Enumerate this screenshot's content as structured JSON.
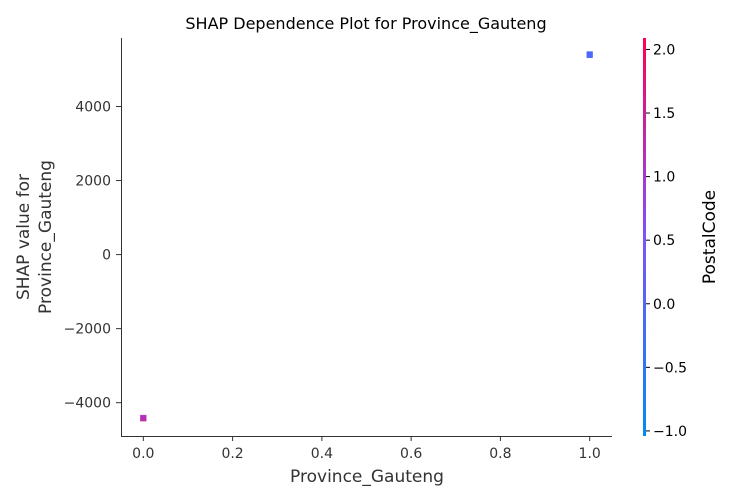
{
  "chart_data": {
    "type": "scatter",
    "title": "SHAP Dependence Plot for Province_Gauteng",
    "xlabel": "Province_Gauteng",
    "ylabel_lines": [
      "SHAP value for",
      "Province_Gauteng"
    ],
    "xlim": [
      -0.05,
      1.05
    ],
    "ylim": [
      -4900,
      5850
    ],
    "x_ticks": [
      0.0,
      0.2,
      0.4,
      0.6,
      0.8,
      1.0
    ],
    "x_tick_labels": [
      "0.0",
      "0.2",
      "0.4",
      "0.6",
      "0.8",
      "1.0"
    ],
    "y_ticks": [
      -4000,
      -2000,
      0,
      2000,
      4000
    ],
    "y_tick_labels": [
      "−4000",
      "−2000",
      "0",
      "2000",
      "4000"
    ],
    "points": [
      {
        "x": 0.0,
        "y": -4420,
        "color_value": 1.5
      },
      {
        "x": 0.0,
        "y": -4420,
        "color_value": 2.0
      },
      {
        "x": 0.0,
        "y": -4410,
        "color_value": 1.0
      },
      {
        "x": 1.0,
        "y": 5390,
        "color_value": -0.5
      },
      {
        "x": 1.0,
        "y": 5410,
        "color_value": -0.3
      },
      {
        "x": 1.0,
        "y": 5400,
        "color_value": 0.0
      }
    ],
    "grid": false,
    "colorbar": {
      "label": "PostalCode",
      "range": [
        -1.04,
        2.09
      ],
      "ticks": [
        -1.0,
        -0.5,
        0.0,
        0.5,
        1.0,
        1.5,
        2.0
      ],
      "tick_labels": [
        "−1.0",
        "−0.5",
        "0.0",
        "0.5",
        "1.0",
        "1.5",
        "2.0"
      ],
      "low_color": "#008afb",
      "mid_color": "#7c52ff",
      "high_color": "#ff0052"
    }
  }
}
